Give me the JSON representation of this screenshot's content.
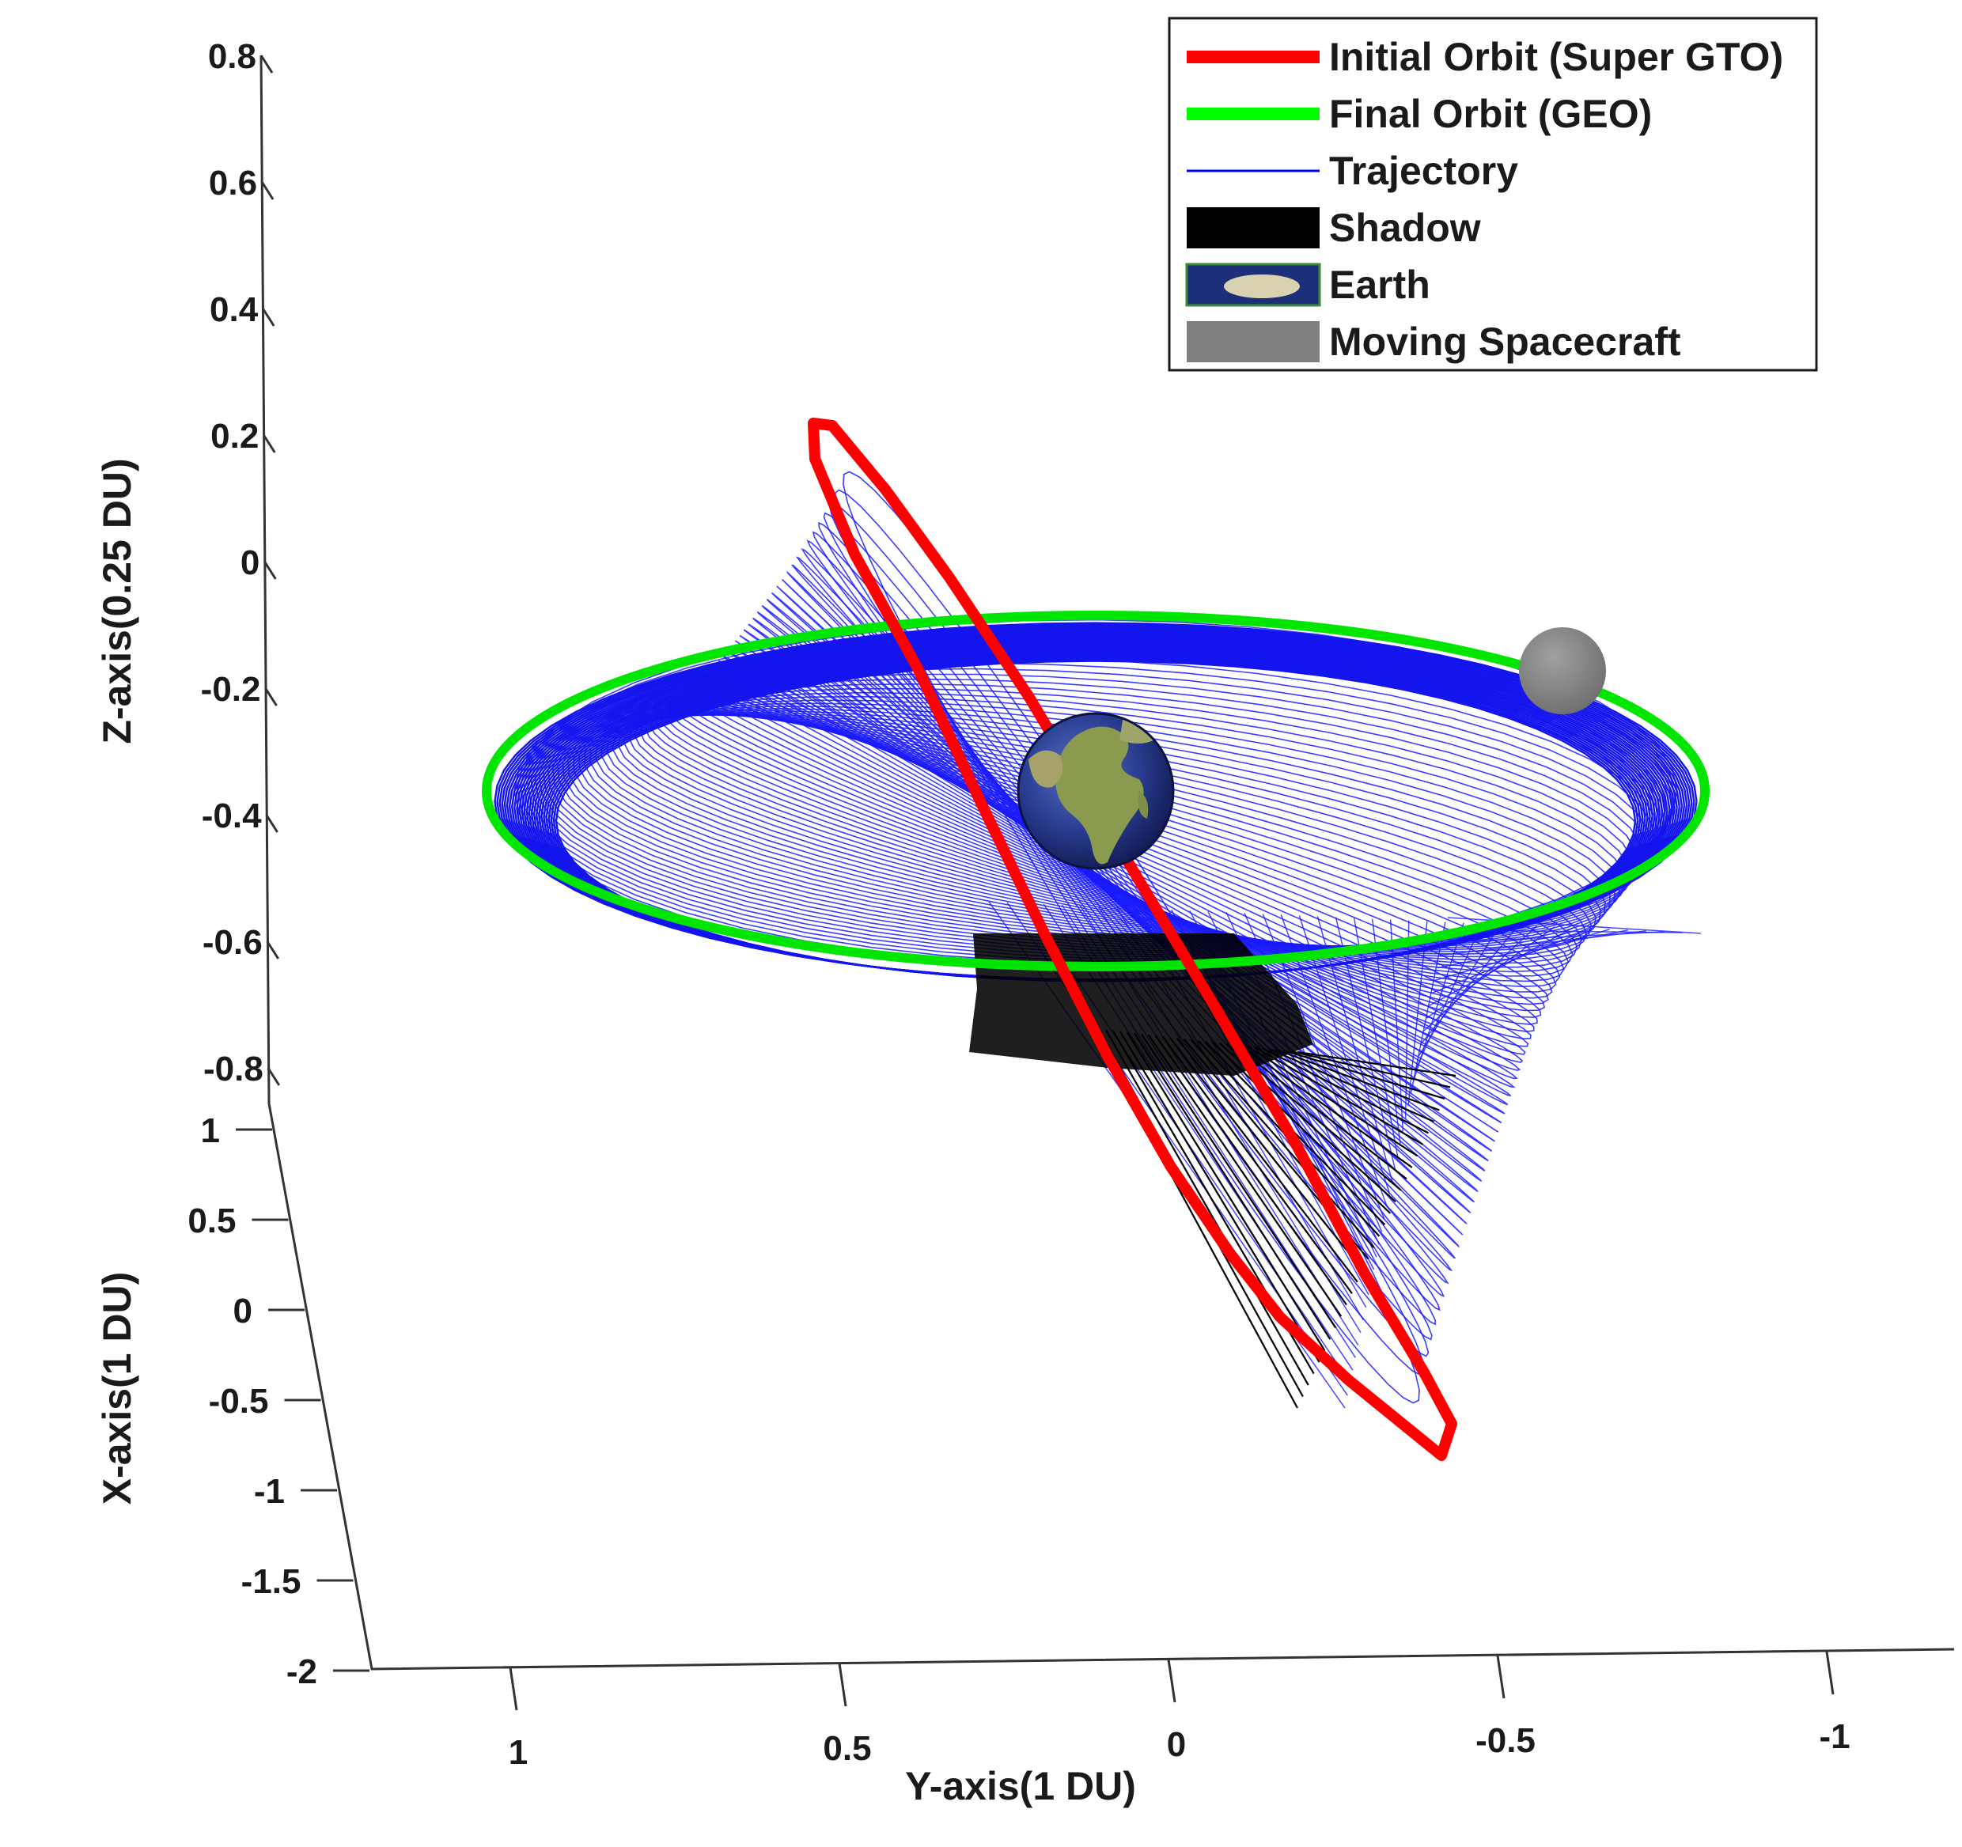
{
  "chart_data": {
    "type": "3d-line",
    "axes": {
      "z": {
        "label": "Z-axis(0.25 DU)",
        "ticks": [
          "0.8",
          "0.6",
          "0.4",
          "0.2",
          "0",
          "-0.2",
          "-0.4",
          "-0.6",
          "-0.8"
        ]
      },
      "x": {
        "label": "X-axis(1 DU)",
        "ticks": [
          "1",
          "0.5",
          "0",
          "-0.5",
          "-1",
          "-1.5",
          "-2"
        ]
      },
      "y": {
        "label": "Y-axis(1 DU)",
        "ticks": [
          "1",
          "0.5",
          "0",
          "-0.5",
          "-1"
        ]
      }
    },
    "legend": {
      "placement": "top-right",
      "items": [
        {
          "label": "Initial Orbit (Super GTO)",
          "color": "#ff0000"
        },
        {
          "label": "Final Orbit (GEO)",
          "color": "#00ff00"
        },
        {
          "label": "Trajectory",
          "color": "#0000ff"
        },
        {
          "label": "Shadow",
          "color": "#000000"
        },
        {
          "label": "Earth",
          "color": "#1e2f7a"
        },
        {
          "label": "Moving Spacecraft",
          "color": "#808080"
        }
      ]
    },
    "series": [
      {
        "name": "Initial Orbit (Super GTO)",
        "kind": "ellipse"
      },
      {
        "name": "Final Orbit (GEO)",
        "kind": "ellipse"
      },
      {
        "name": "Trajectory",
        "kind": "spiral"
      },
      {
        "name": "Shadow",
        "kind": "band"
      },
      {
        "name": "Earth",
        "kind": "sphere"
      },
      {
        "name": "Moving Spacecraft",
        "kind": "sphere"
      }
    ]
  }
}
